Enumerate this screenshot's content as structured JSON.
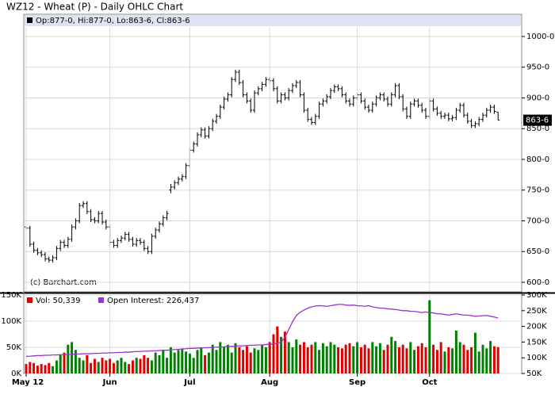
{
  "chart_data": [
    {
      "type": "ohlc",
      "title": "WZ12 - Wheat (P) - Daily OHLC Chart",
      "header": "Op:877-0, Hi:877-0, Lo:863-6, Cl:863-6",
      "credit": "(c) Barchart.com",
      "last_label": "863-6",
      "color": "#000000",
      "grid": true,
      "ylim": [
        584.5,
        1036.1
      ],
      "yticks": [
        {
          "value": 600,
          "label": "600-0"
        },
        {
          "value": 650,
          "label": "650-0"
        },
        {
          "value": 700,
          "label": "700-0"
        },
        {
          "value": 750,
          "label": "750-0"
        },
        {
          "value": 800,
          "label": "800-0"
        },
        {
          "value": 850,
          "label": "850-0"
        },
        {
          "value": 900,
          "label": "900-0"
        },
        {
          "value": 950,
          "label": "950-0"
        },
        {
          "value": 1000,
          "label": "1000-0"
        }
      ],
      "open": [
        690,
        688,
        662,
        652,
        648,
        645,
        638,
        636,
        640,
        655,
        665,
        660,
        670,
        690,
        700,
        725,
        728,
        715,
        702,
        700,
        712,
        698,
        690,
        665,
        660,
        668,
        672,
        678,
        670,
        662,
        668,
        665,
        655,
        650,
        675,
        685,
        695,
        705,
        750,
        755,
        762,
        768,
        772,
        790,
        815,
        825,
        840,
        848,
        838,
        850,
        862,
        870,
        885,
        898,
        905,
        930,
        942,
        925,
        905,
        895,
        880,
        908,
        915,
        922,
        930,
        928,
        915,
        895,
        905,
        900,
        912,
        920,
        925,
        905,
        880,
        865,
        860,
        870,
        890,
        895,
        902,
        912,
        918,
        915,
        905,
        895,
        890,
        900,
        905,
        895,
        885,
        880,
        890,
        900,
        905,
        898,
        890,
        905,
        920,
        902,
        882,
        870,
        890,
        895,
        888,
        880,
        870,
        895,
        882,
        875,
        870,
        872,
        866,
        868,
        880,
        888,
        872,
        862,
        855,
        858,
        865,
        872,
        880,
        885,
        877
      ],
      "high": [
        694,
        692,
        666,
        656,
        652,
        649,
        642,
        644,
        659,
        669,
        669,
        674,
        694,
        704,
        729,
        732,
        732,
        719,
        706,
        716,
        716,
        702,
        694,
        669,
        672,
        676,
        682,
        682,
        674,
        672,
        672,
        669,
        659,
        679,
        689,
        699,
        709,
        716,
        760,
        766,
        772,
        776,
        794,
        819,
        829,
        844,
        852,
        852,
        854,
        866,
        874,
        889,
        902,
        909,
        934,
        946,
        946,
        929,
        909,
        899,
        912,
        919,
        926,
        934,
        934,
        932,
        919,
        909,
        909,
        916,
        924,
        929,
        929,
        909,
        884,
        869,
        874,
        894,
        899,
        906,
        916,
        922,
        922,
        919,
        909,
        899,
        904,
        909,
        909,
        899,
        889,
        894,
        904,
        909,
        909,
        902,
        909,
        924,
        924,
        906,
        886,
        894,
        899,
        899,
        892,
        884,
        899,
        899,
        886,
        879,
        876,
        876,
        872,
        884,
        892,
        892,
        876,
        866,
        862,
        869,
        876,
        884,
        889,
        889,
        877
      ],
      "low": [
        684,
        658,
        648,
        644,
        641,
        634,
        632,
        632,
        636,
        651,
        656,
        656,
        666,
        686,
        696,
        721,
        711,
        698,
        696,
        696,
        694,
        686,
        661,
        656,
        656,
        664,
        668,
        666,
        658,
        658,
        661,
        651,
        646,
        646,
        671,
        681,
        691,
        701,
        745,
        751,
        758,
        764,
        768,
        786,
        811,
        821,
        836,
        834,
        834,
        846,
        858,
        866,
        881,
        894,
        901,
        926,
        921,
        901,
        891,
        876,
        876,
        904,
        911,
        918,
        924,
        911,
        891,
        891,
        896,
        896,
        908,
        916,
        901,
        876,
        861,
        856,
        856,
        866,
        886,
        891,
        898,
        908,
        911,
        901,
        891,
        886,
        886,
        896,
        891,
        881,
        876,
        876,
        886,
        896,
        894,
        886,
        886,
        901,
        898,
        878,
        866,
        866,
        886,
        884,
        876,
        866,
        866,
        878,
        871,
        866,
        866,
        862,
        862,
        864,
        876,
        868,
        858,
        851,
        851,
        854,
        861,
        868,
        876,
        874,
        863.75
      ],
      "close": [
        688,
        662,
        652,
        648,
        645,
        638,
        636,
        640,
        655,
        665,
        660,
        670,
        690,
        700,
        725,
        728,
        715,
        702,
        700,
        712,
        698,
        690,
        665,
        660,
        668,
        672,
        678,
        670,
        662,
        668,
        665,
        655,
        650,
        675,
        685,
        695,
        705,
        712,
        755,
        762,
        768,
        772,
        790,
        815,
        825,
        840,
        848,
        838,
        850,
        862,
        870,
        885,
        898,
        905,
        930,
        942,
        925,
        905,
        895,
        880,
        908,
        915,
        922,
        930,
        928,
        915,
        895,
        905,
        900,
        912,
        920,
        925,
        905,
        880,
        865,
        860,
        870,
        890,
        895,
        902,
        912,
        918,
        915,
        905,
        895,
        890,
        900,
        905,
        895,
        885,
        880,
        890,
        900,
        905,
        898,
        890,
        905,
        920,
        902,
        882,
        870,
        890,
        895,
        888,
        880,
        870,
        895,
        882,
        875,
        870,
        872,
        866,
        868,
        880,
        888,
        872,
        862,
        855,
        858,
        865,
        872,
        880,
        885,
        878,
        863.75
      ]
    },
    {
      "type": "volume",
      "grid": true,
      "categories": [
        "May 12",
        null,
        null,
        null,
        null,
        null,
        null,
        null,
        null,
        null,
        null,
        null,
        null,
        null,
        null,
        null,
        null,
        null,
        null,
        null,
        null,
        null,
        "Jun",
        null,
        null,
        null,
        null,
        null,
        null,
        null,
        null,
        null,
        null,
        null,
        null,
        null,
        null,
        null,
        null,
        null,
        null,
        null,
        null,
        "Jul",
        null,
        null,
        null,
        null,
        null,
        null,
        null,
        null,
        null,
        null,
        null,
        null,
        null,
        null,
        null,
        null,
        null,
        null,
        null,
        null,
        "Aug",
        null,
        null,
        null,
        null,
        null,
        null,
        null,
        null,
        null,
        null,
        null,
        null,
        null,
        null,
        null,
        null,
        null,
        null,
        null,
        null,
        null,
        null,
        "Sep",
        null,
        null,
        null,
        null,
        null,
        null,
        null,
        null,
        null,
        null,
        null,
        null,
        null,
        null,
        null,
        null,
        null,
        null,
        "Oct",
        null,
        null,
        null,
        null,
        null,
        null,
        null,
        null,
        null,
        null,
        null,
        null,
        null,
        null,
        null,
        null,
        null,
        null
      ],
      "ylim": [
        0,
        150000
      ],
      "yticks": [
        {
          "value": 0,
          "label": "0K"
        },
        {
          "value": 50000,
          "label": "50K"
        },
        {
          "value": 100000,
          "label": "100K"
        },
        {
          "value": 150000,
          "label": "150K"
        }
      ],
      "y2lim": [
        50000,
        300000
      ],
      "y2ticks": [
        {
          "value": 50000,
          "label": "50K"
        },
        {
          "value": 100000,
          "label": "100K"
        },
        {
          "value": 150000,
          "label": "150K"
        },
        {
          "value": 200000,
          "label": "200K"
        },
        {
          "value": 250000,
          "label": "250K"
        },
        {
          "value": 300000,
          "label": "300K"
        }
      ],
      "series": [
        {
          "name": "Vol: 50,339",
          "color": "#e00000",
          "up_color": "#008000",
          "values": [
            18000,
            22000,
            20000,
            15000,
            18000,
            16000,
            20000,
            14000,
            25000,
            35000,
            40000,
            55000,
            60000,
            45000,
            30000,
            25000,
            35000,
            20000,
            28000,
            22000,
            30000,
            25000,
            28000,
            20000,
            25000,
            30000,
            22000,
            18000,
            25000,
            30000,
            28000,
            35000,
            30000,
            25000,
            40000,
            35000,
            45000,
            30000,
            50000,
            40000,
            45000,
            48000,
            42000,
            38000,
            30000,
            45000,
            50000,
            35000,
            40000,
            55000,
            45000,
            60000,
            50000,
            55000,
            40000,
            58000,
            50000,
            45000,
            52000,
            40000,
            48000,
            45000,
            55000,
            50000,
            60000,
            75000,
            90000,
            70000,
            80000,
            60000,
            50000,
            65000,
            55000,
            60000,
            50000,
            55000,
            60000,
            45000,
            58000,
            52000,
            60000,
            55000,
            50000,
            48000,
            55000,
            58000,
            52000,
            60000,
            50000,
            55000,
            48000,
            60000,
            52000,
            58000,
            45000,
            55000,
            70000,
            62000,
            50000,
            55000,
            48000,
            60000,
            45000,
            52000,
            58000,
            50000,
            140000,
            55000,
            45000,
            60000,
            42000,
            50000,
            48000,
            82000,
            60000,
            55000,
            45000,
            50000,
            78000,
            42000,
            55000,
            48000,
            62000,
            52000,
            50339
          ]
        },
        {
          "name": "Open Interest: 226,437",
          "color": "#9933cc",
          "axis": "y2",
          "values": [
            105000,
            105000,
            106000,
            107000,
            107000,
            108000,
            108000,
            109000,
            109000,
            110000,
            110000,
            111000,
            111000,
            112000,
            112000,
            113000,
            113000,
            113000,
            114000,
            114000,
            115000,
            115000,
            116000,
            116000,
            117000,
            117000,
            118000,
            118000,
            119000,
            120000,
            120000,
            121000,
            121000,
            122000,
            122000,
            123000,
            124000,
            124000,
            125000,
            126000,
            127000,
            128000,
            129000,
            130000,
            130000,
            131000,
            131000,
            132000,
            132000,
            133000,
            134000,
            134000,
            135000,
            136000,
            136000,
            137000,
            138000,
            138000,
            139000,
            140000,
            140000,
            141000,
            141000,
            142000,
            143000,
            144000,
            146000,
            150000,
            165000,
            190000,
            215000,
            235000,
            245000,
            252000,
            258000,
            262000,
            265000,
            266000,
            265000,
            264000,
            266000,
            268000,
            270000,
            270000,
            268000,
            267000,
            268000,
            266000,
            265000,
            264000,
            266000,
            262000,
            260000,
            258000,
            258000,
            256000,
            255000,
            254000,
            252000,
            250000,
            250000,
            248000,
            248000,
            246000,
            244000,
            246000,
            244000,
            243000,
            240000,
            240000,
            238000,
            236000,
            238000,
            240000,
            238000,
            236000,
            236000,
            234000,
            232000,
            233000,
            234000,
            235000,
            232000,
            230000,
            226437
          ]
        }
      ]
    }
  ]
}
